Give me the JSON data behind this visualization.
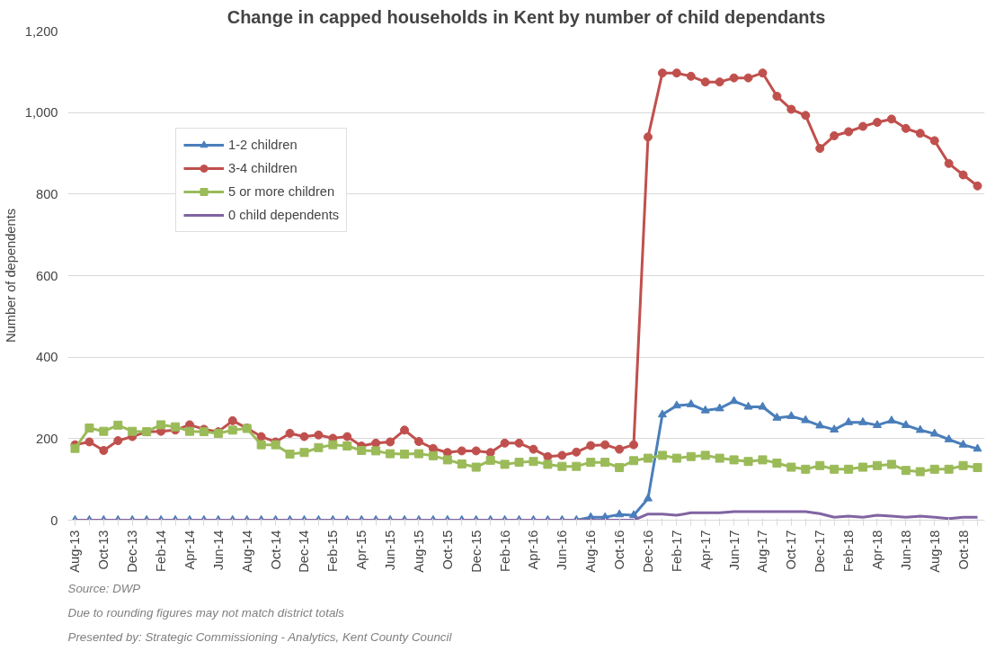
{
  "chart_data": {
    "type": "line",
    "title": "Change in capped households in Kent by number of child dependants",
    "ylabel": "Number of dependents",
    "categories": [
      "Aug-13",
      null,
      "Oct-13",
      null,
      "Dec-13",
      null,
      "Feb-14",
      null,
      "Apr-14",
      null,
      "Jun-14",
      null,
      "Aug-14",
      null,
      "Oct-14",
      null,
      "Dec-14",
      null,
      "Feb-15",
      null,
      "Apr-15",
      null,
      "Jun-15",
      null,
      "Aug-15",
      null,
      "Oct-15",
      null,
      "Dec-15",
      null,
      "Feb-16",
      null,
      "Apr-16",
      null,
      "Jun-16",
      null,
      "Aug-16",
      null,
      "Oct-16",
      null,
      "Dec-16",
      null,
      "Feb-17",
      null,
      "Apr-17",
      null,
      "Jun-17",
      null,
      "Aug-17",
      null,
      "Oct-17",
      null,
      "Dec-17",
      null,
      "Feb-18",
      null,
      "Apr-18",
      null,
      "Jun-18",
      null,
      "Aug-18",
      null,
      "Oct-18",
      null
    ],
    "series": [
      {
        "name": "1-2 children",
        "color": "#4a7ebb",
        "marker": "triangle",
        "values": [
          0,
          0,
          0,
          0,
          0,
          0,
          0,
          0,
          0,
          0,
          0,
          0,
          0,
          0,
          0,
          0,
          0,
          0,
          0,
          0,
          0,
          0,
          0,
          0,
          0,
          0,
          0,
          0,
          0,
          0,
          0,
          0,
          0,
          0,
          0,
          0,
          7,
          7,
          14,
          12,
          53,
          259,
          281,
          284,
          269,
          274,
          292,
          278,
          278,
          251,
          255,
          245,
          232,
          222,
          240,
          240,
          233,
          244,
          233,
          221,
          212,
          198,
          185,
          175
        ]
      },
      {
        "name": "3-4 children",
        "color": "#c0504d",
        "marker": "circle",
        "values": [
          185,
          192,
          171,
          195,
          205,
          217,
          218,
          221,
          234,
          223,
          217,
          244,
          226,
          205,
          192,
          213,
          205,
          209,
          201,
          205,
          182,
          189,
          192,
          221,
          193,
          176,
          166,
          170,
          170,
          166,
          189,
          189,
          174,
          156,
          159,
          167,
          183,
          185,
          174,
          185,
          940,
          1097,
          1097,
          1089,
          1075,
          1075,
          1085,
          1085,
          1097,
          1040,
          1008,
          993,
          912,
          943,
          953,
          966,
          976,
          984,
          961,
          949,
          931,
          875,
          847,
          820
        ]
      },
      {
        "name": "5 or more children",
        "color": "#9bbb59",
        "marker": "square",
        "values": [
          176,
          226,
          218,
          233,
          218,
          217,
          234,
          229,
          218,
          217,
          213,
          221,
          225,
          185,
          185,
          162,
          166,
          178,
          185,
          182,
          171,
          170,
          163,
          162,
          163,
          158,
          148,
          138,
          130,
          147,
          137,
          142,
          144,
          137,
          132,
          132,
          142,
          142,
          129,
          146,
          152,
          159,
          152,
          156,
          159,
          152,
          148,
          144,
          148,
          140,
          130,
          125,
          134,
          125,
          125,
          130,
          134,
          137,
          122,
          119,
          125,
          125,
          134,
          129
        ]
      },
      {
        "name": "0 child dependents",
        "color": "#8064a2",
        "marker": "none",
        "values": [
          0,
          0,
          0,
          0,
          0,
          0,
          0,
          0,
          0,
          0,
          0,
          0,
          0,
          0,
          0,
          0,
          0,
          0,
          0,
          0,
          0,
          0,
          0,
          0,
          0,
          0,
          0,
          0,
          0,
          0,
          0,
          0,
          0,
          0,
          0,
          0,
          0,
          0,
          0,
          0,
          15,
          15,
          12,
          18,
          18,
          18,
          21,
          21,
          21,
          21,
          21,
          21,
          16,
          7,
          10,
          7,
          12,
          10,
          7,
          10,
          7,
          4,
          7,
          7
        ]
      }
    ],
    "ylim": [
      0,
      1200
    ],
    "yticks": [
      0,
      200,
      400,
      600,
      800,
      {
        "value": 1000,
        "label": "1,000"
      },
      {
        "value": 1200,
        "label": "1,200"
      }
    ],
    "grid": "y",
    "legend": "top left",
    "line_style": "solid",
    "annotations": [
      "Source: DWP",
      "Due to rounding figures may not match district totals",
      "Presented by: Strategic Commissioning - Analytics, Kent County Council"
    ]
  }
}
